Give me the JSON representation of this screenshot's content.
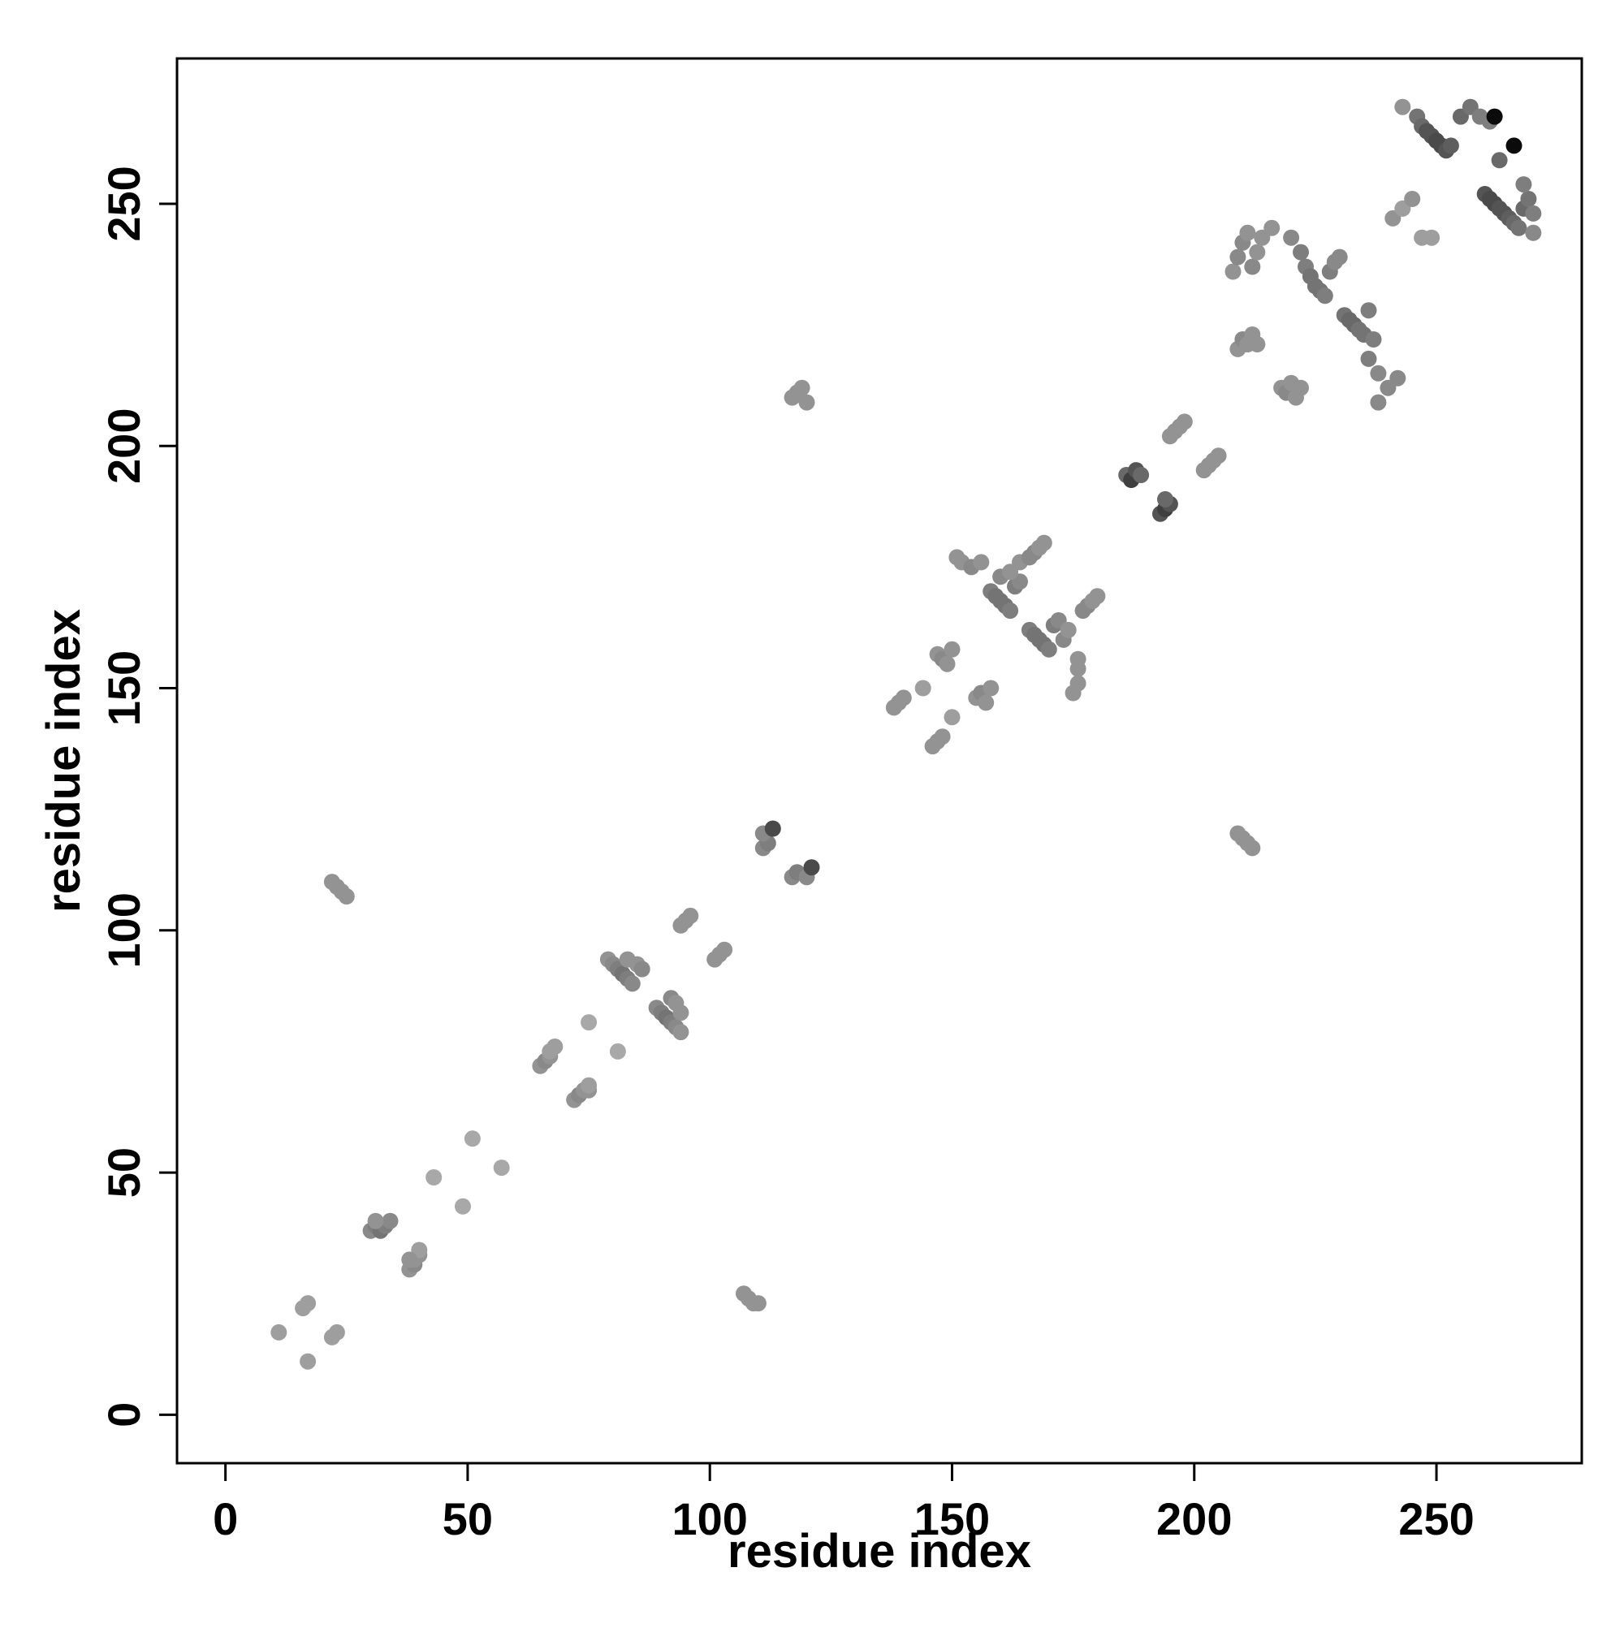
{
  "chart_data": {
    "type": "scatter",
    "title": "",
    "xlabel": "residue index",
    "ylabel": "residue index",
    "xlim": [
      -10,
      280
    ],
    "ylim": [
      -10,
      280
    ],
    "xticks": [
      0,
      50,
      100,
      150,
      200,
      250
    ],
    "yticks": [
      0,
      50,
      100,
      150,
      200,
      250
    ],
    "grid": false,
    "legend": "none",
    "marker_color_scale": "grayscale (light gray = weak, black = strong)",
    "series": [
      {
        "points": [
          [
            11,
            17,
            0.25
          ],
          [
            17,
            11,
            0.25
          ],
          [
            16,
            22,
            0.25
          ],
          [
            17,
            23,
            0.25
          ],
          [
            22,
            16,
            0.25
          ],
          [
            23,
            17,
            0.25
          ],
          [
            22,
            110,
            0.3
          ],
          [
            23,
            109,
            0.3
          ],
          [
            24,
            108,
            0.3
          ],
          [
            25,
            107,
            0.3
          ],
          [
            107,
            25,
            0.3
          ],
          [
            108,
            24,
            0.3
          ],
          [
            109,
            23,
            0.3
          ],
          [
            110,
            23,
            0.3
          ],
          [
            30,
            38,
            0.35
          ],
          [
            31,
            39,
            0.4
          ],
          [
            32,
            38,
            0.45
          ],
          [
            33,
            39,
            0.4
          ],
          [
            34,
            40,
            0.35
          ],
          [
            31,
            40,
            0.3
          ],
          [
            38,
            30,
            0.3
          ],
          [
            39,
            31,
            0.35
          ],
          [
            39,
            32,
            0.3
          ],
          [
            40,
            33,
            0.3
          ],
          [
            40,
            34,
            0.25
          ],
          [
            38,
            32,
            0.3
          ],
          [
            43,
            49,
            0.2
          ],
          [
            49,
            43,
            0.2
          ],
          [
            51,
            57,
            0.2
          ],
          [
            57,
            51,
            0.2
          ],
          [
            65,
            72,
            0.3
          ],
          [
            66,
            73,
            0.35
          ],
          [
            67,
            74,
            0.3
          ],
          [
            67,
            75,
            0.25
          ],
          [
            68,
            76,
            0.25
          ],
          [
            72,
            65,
            0.3
          ],
          [
            73,
            66,
            0.35
          ],
          [
            74,
            67,
            0.3
          ],
          [
            75,
            67,
            0.3
          ],
          [
            75,
            68,
            0.25
          ],
          [
            75,
            81,
            0.2
          ],
          [
            81,
            75,
            0.2
          ],
          [
            79,
            94,
            0.3
          ],
          [
            80,
            93,
            0.35
          ],
          [
            81,
            92,
            0.4
          ],
          [
            82,
            91,
            0.45
          ],
          [
            83,
            90,
            0.4
          ],
          [
            84,
            89,
            0.35
          ],
          [
            85,
            93,
            0.3
          ],
          [
            86,
            92,
            0.35
          ],
          [
            83,
            94,
            0.3
          ],
          [
            89,
            84,
            0.35
          ],
          [
            90,
            83,
            0.4
          ],
          [
            91,
            82,
            0.45
          ],
          [
            92,
            81,
            0.4
          ],
          [
            93,
            80,
            0.35
          ],
          [
            94,
            79,
            0.3
          ],
          [
            92,
            86,
            0.35
          ],
          [
            93,
            85,
            0.3
          ],
          [
            94,
            83,
            0.3
          ],
          [
            94,
            101,
            0.3
          ],
          [
            95,
            102,
            0.3
          ],
          [
            96,
            103,
            0.3
          ],
          [
            101,
            94,
            0.3
          ],
          [
            102,
            95,
            0.3
          ],
          [
            103,
            96,
            0.3
          ],
          [
            111,
            117,
            0.35
          ],
          [
            112,
            118,
            0.4
          ],
          [
            111,
            120,
            0.35
          ],
          [
            113,
            121,
            0.65
          ],
          [
            117,
            111,
            0.35
          ],
          [
            118,
            112,
            0.4
          ],
          [
            120,
            111,
            0.35
          ],
          [
            121,
            113,
            0.65
          ],
          [
            117,
            210,
            0.3
          ],
          [
            118,
            211,
            0.3
          ],
          [
            119,
            212,
            0.3
          ],
          [
            120,
            209,
            0.3
          ],
          [
            209,
            120,
            0.3
          ],
          [
            210,
            119,
            0.3
          ],
          [
            211,
            118,
            0.3
          ],
          [
            212,
            117,
            0.3
          ],
          [
            138,
            146,
            0.3
          ],
          [
            139,
            147,
            0.3
          ],
          [
            140,
            148,
            0.3
          ],
          [
            144,
            150,
            0.25
          ],
          [
            146,
            138,
            0.3
          ],
          [
            147,
            139,
            0.3
          ],
          [
            148,
            140,
            0.3
          ],
          [
            150,
            144,
            0.25
          ],
          [
            147,
            157,
            0.3
          ],
          [
            148,
            156,
            0.35
          ],
          [
            149,
            155,
            0.3
          ],
          [
            150,
            158,
            0.3
          ],
          [
            151,
            177,
            0.3
          ],
          [
            152,
            176,
            0.3
          ],
          [
            154,
            175,
            0.35
          ],
          [
            156,
            176,
            0.3
          ],
          [
            155,
            148,
            0.3
          ],
          [
            156,
            149,
            0.35
          ],
          [
            157,
            147,
            0.3
          ],
          [
            158,
            150,
            0.3
          ],
          [
            158,
            170,
            0.4
          ],
          [
            159,
            169,
            0.45
          ],
          [
            160,
            168,
            0.45
          ],
          [
            161,
            167,
            0.45
          ],
          [
            162,
            166,
            0.4
          ],
          [
            163,
            171,
            0.4
          ],
          [
            164,
            172,
            0.35
          ],
          [
            160,
            173,
            0.35
          ],
          [
            162,
            174,
            0.3
          ],
          [
            164,
            176,
            0.3
          ],
          [
            166,
            162,
            0.4
          ],
          [
            167,
            161,
            0.45
          ],
          [
            168,
            160,
            0.45
          ],
          [
            169,
            159,
            0.45
          ],
          [
            170,
            158,
            0.4
          ],
          [
            171,
            163,
            0.4
          ],
          [
            172,
            164,
            0.35
          ],
          [
            173,
            160,
            0.35
          ],
          [
            174,
            162,
            0.3
          ],
          [
            176,
            154,
            0.3
          ],
          [
            176,
            151,
            0.3
          ],
          [
            175,
            149,
            0.3
          ],
          [
            176,
            156,
            0.3
          ],
          [
            166,
            177,
            0.35
          ],
          [
            167,
            178,
            0.35
          ],
          [
            168,
            179,
            0.3
          ],
          [
            169,
            180,
            0.3
          ],
          [
            177,
            166,
            0.35
          ],
          [
            178,
            167,
            0.35
          ],
          [
            179,
            168,
            0.3
          ],
          [
            180,
            169,
            0.3
          ],
          [
            186,
            194,
            0.5
          ],
          [
            187,
            193,
            0.7
          ],
          [
            188,
            195,
            0.6
          ],
          [
            189,
            194,
            0.5
          ],
          [
            193,
            186,
            0.6
          ],
          [
            194,
            187,
            0.7
          ],
          [
            195,
            188,
            0.6
          ],
          [
            194,
            189,
            0.5
          ],
          [
            195,
            202,
            0.3
          ],
          [
            196,
            203,
            0.3
          ],
          [
            197,
            204,
            0.3
          ],
          [
            198,
            205,
            0.3
          ],
          [
            202,
            195,
            0.3
          ],
          [
            203,
            196,
            0.3
          ],
          [
            204,
            197,
            0.3
          ],
          [
            205,
            198,
            0.3
          ],
          [
            208,
            236,
            0.3
          ],
          [
            209,
            239,
            0.35
          ],
          [
            210,
            242,
            0.35
          ],
          [
            211,
            244,
            0.3
          ],
          [
            212,
            237,
            0.35
          ],
          [
            213,
            240,
            0.3
          ],
          [
            214,
            243,
            0.3
          ],
          [
            216,
            245,
            0.3
          ],
          [
            209,
            220,
            0.3
          ],
          [
            210,
            222,
            0.35
          ],
          [
            211,
            221,
            0.3
          ],
          [
            212,
            223,
            0.3
          ],
          [
            213,
            221,
            0.3
          ],
          [
            218,
            212,
            0.3
          ],
          [
            219,
            211,
            0.35
          ],
          [
            220,
            213,
            0.3
          ],
          [
            221,
            210,
            0.3
          ],
          [
            222,
            212,
            0.3
          ],
          [
            220,
            243,
            0.35
          ],
          [
            222,
            240,
            0.4
          ],
          [
            223,
            237,
            0.4
          ],
          [
            224,
            235,
            0.45
          ],
          [
            225,
            233,
            0.45
          ],
          [
            226,
            232,
            0.45
          ],
          [
            227,
            231,
            0.4
          ],
          [
            228,
            236,
            0.4
          ],
          [
            229,
            238,
            0.35
          ],
          [
            230,
            239,
            0.35
          ],
          [
            231,
            227,
            0.45
          ],
          [
            232,
            226,
            0.5
          ],
          [
            233,
            225,
            0.5
          ],
          [
            234,
            224,
            0.45
          ],
          [
            235,
            223,
            0.45
          ],
          [
            236,
            228,
            0.4
          ],
          [
            237,
            222,
            0.4
          ],
          [
            238,
            215,
            0.35
          ],
          [
            240,
            212,
            0.35
          ],
          [
            242,
            214,
            0.35
          ],
          [
            238,
            209,
            0.35
          ],
          [
            236,
            218,
            0.4
          ],
          [
            241,
            247,
            0.3
          ],
          [
            243,
            249,
            0.25
          ],
          [
            245,
            251,
            0.3
          ],
          [
            247,
            243,
            0.25
          ],
          [
            249,
            243,
            0.25
          ],
          [
            243,
            270,
            0.3
          ],
          [
            246,
            268,
            0.45
          ],
          [
            247,
            266,
            0.5
          ],
          [
            248,
            265,
            0.6
          ],
          [
            249,
            264,
            0.6
          ],
          [
            250,
            263,
            0.65
          ],
          [
            251,
            262,
            0.65
          ],
          [
            252,
            261,
            0.6
          ],
          [
            253,
            262,
            0.55
          ],
          [
            255,
            268,
            0.5
          ],
          [
            257,
            270,
            0.45
          ],
          [
            259,
            268,
            0.4
          ],
          [
            261,
            267,
            0.4
          ],
          [
            260,
            252,
            0.6
          ],
          [
            261,
            251,
            0.65
          ],
          [
            262,
            250,
            0.65
          ],
          [
            263,
            249,
            0.6
          ],
          [
            264,
            248,
            0.6
          ],
          [
            265,
            247,
            0.55
          ],
          [
            266,
            246,
            0.5
          ],
          [
            267,
            245,
            0.45
          ],
          [
            268,
            249,
            0.5
          ],
          [
            269,
            251,
            0.45
          ],
          [
            270,
            248,
            0.4
          ],
          [
            270,
            244,
            0.35
          ],
          [
            268,
            254,
            0.4
          ],
          [
            263,
            259,
            0.5
          ],
          [
            266,
            262,
            0.95
          ],
          [
            262,
            268,
            0.95
          ]
        ]
      }
    ]
  }
}
